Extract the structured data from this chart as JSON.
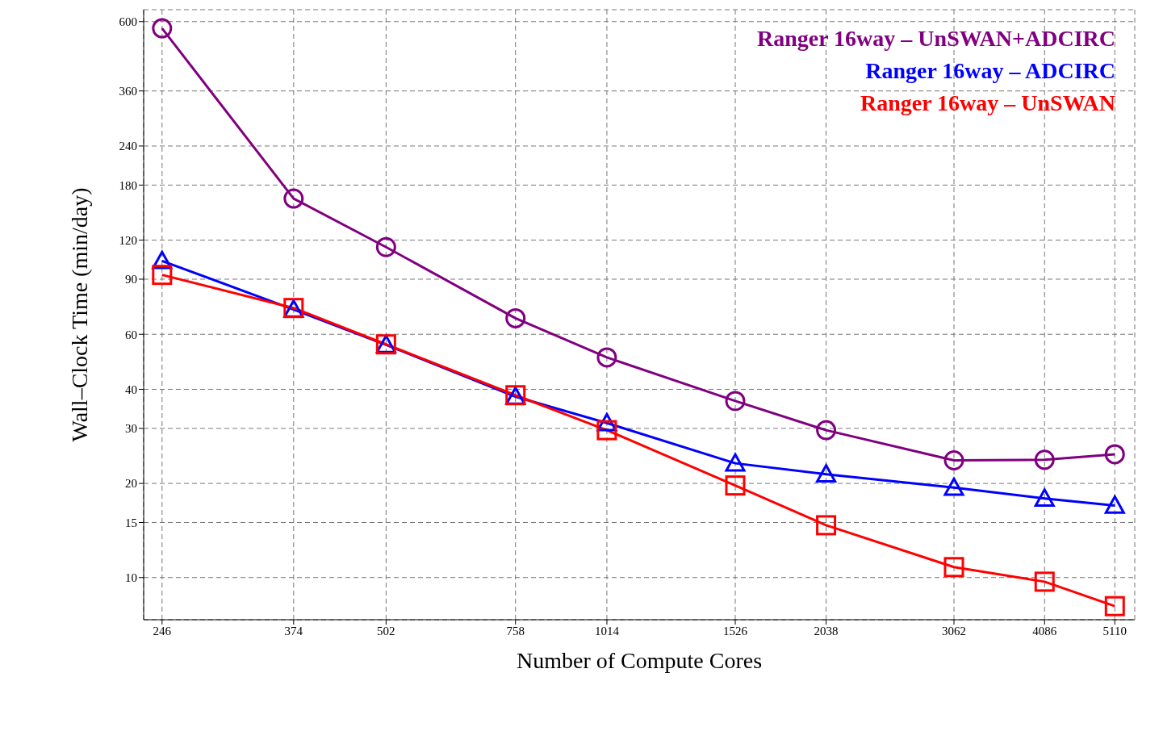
{
  "chart_data": {
    "type": "line",
    "xlabel": "Number of Compute Cores",
    "ylabel": "Wall–Clock Time (min/day)",
    "log": "xy",
    "x": [
      246,
      374,
      502,
      758,
      1014,
      1526,
      2038,
      3062,
      4086,
      5110
    ],
    "xlim": [
      232,
      5445
    ],
    "xticks": [
      246,
      374,
      502,
      758,
      1014,
      1526,
      2038,
      3062,
      4086,
      5110
    ],
    "ylim": [
      7.33,
      655
    ],
    "yticks": [
      10,
      15,
      20,
      30,
      40,
      60,
      90,
      120,
      180,
      240,
      360,
      600
    ],
    "grid": true,
    "legend": "top right",
    "line_style": "solid",
    "series": [
      {
        "name": "Ranger 16way – UnSWAN+ADCIRC",
        "color": "#800080",
        "marker": "circle",
        "values": [
          571,
          163,
          114,
          67.5,
          50.6,
          36.7,
          29.6,
          23.7,
          23.8,
          24.8
        ]
      },
      {
        "name": "Ranger 16way – ADCIRC",
        "color": "#0000ff",
        "marker": "triangle",
        "values": [
          103,
          72,
          55.5,
          37.9,
          31.2,
          23.2,
          21.4,
          19.4,
          17.9,
          17.0
        ]
      },
      {
        "name": "Ranger 16way – UnSWAN",
        "color": "#ff0000",
        "marker": "square",
        "values": [
          92.9,
          72.8,
          55.7,
          38.3,
          29.6,
          19.7,
          14.7,
          10.8,
          9.7,
          8.1
        ]
      }
    ]
  }
}
